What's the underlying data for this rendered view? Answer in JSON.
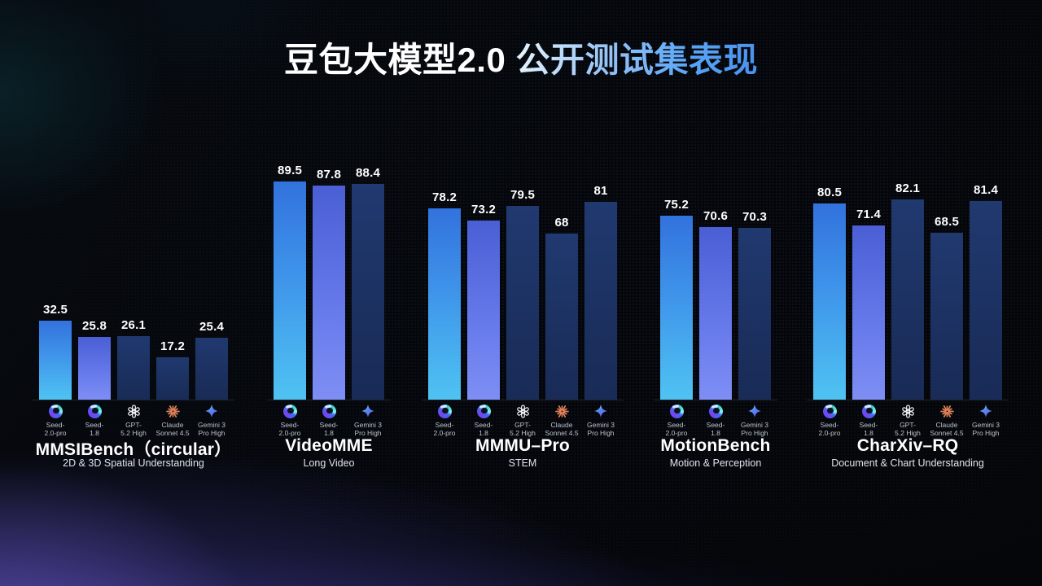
{
  "title": {
    "part1": "豆包大模型2.0",
    "part2": "公开测试集表现"
  },
  "colors": {
    "background": "#04060a",
    "bar_seed_pro_top": "#3272dd",
    "bar_seed_pro_bottom": "#4fc3f2",
    "bar_seed_18_top": "#4a5fd4",
    "bar_seed_18_bottom": "#7e8ef5",
    "bar_dark_top": "#20396f",
    "bar_dark_bottom": "#192b56",
    "title_accent": "#58a4f5",
    "claude_orange": "#e0805a"
  },
  "models": {
    "seed_pro": {
      "label_line1": "Seed-",
      "label_line2": "2.0-pro",
      "icon": "seed-icon",
      "bar_style": "bar-seed-pro"
    },
    "seed_18": {
      "label_line1": "Seed-",
      "label_line2": "1.8",
      "icon": "seed-icon",
      "bar_style": "bar-seed-18"
    },
    "gpt": {
      "label_line1": "GPT-",
      "label_line2": "5.2 High",
      "icon": "openai-icon",
      "bar_style": "bar-dark"
    },
    "claude": {
      "label_line1": "Claude",
      "label_line2": "Sonnet 4.5",
      "icon": "claude-icon",
      "bar_style": "bar-dark"
    },
    "gemini": {
      "label_line1": "Gemini 3",
      "label_line2": "Pro High",
      "icon": "gemini-icon",
      "bar_style": "bar-dark"
    }
  },
  "chart_data": {
    "type": "bar",
    "ylim": [
      0,
      100
    ],
    "legend_position": "below-bars",
    "grid": false,
    "groups": [
      {
        "name": "MMSIBench（circular）",
        "subtitle": "2D & 3D Spatial Understanding",
        "bars": [
          {
            "model": "seed_pro",
            "value": 32.5
          },
          {
            "model": "seed_18",
            "value": 25.8
          },
          {
            "model": "gpt",
            "value": 26.1
          },
          {
            "model": "claude",
            "value": 17.2
          },
          {
            "model": "gemini",
            "value": 25.4
          }
        ]
      },
      {
        "name": "VideoMME",
        "subtitle": "Long Video",
        "bars": [
          {
            "model": "seed_pro",
            "value": 89.5
          },
          {
            "model": "seed_18",
            "value": 87.8
          },
          {
            "model": "gemini",
            "value": 88.4
          }
        ]
      },
      {
        "name": "MMMU–Pro",
        "subtitle": "STEM",
        "bars": [
          {
            "model": "seed_pro",
            "value": 78.2
          },
          {
            "model": "seed_18",
            "value": 73.2
          },
          {
            "model": "gpt",
            "value": 79.5
          },
          {
            "model": "claude",
            "value": 68
          },
          {
            "model": "gemini",
            "value": 81
          }
        ]
      },
      {
        "name": "MotionBench",
        "subtitle": "Motion & Perception",
        "bars": [
          {
            "model": "seed_pro",
            "value": 75.2
          },
          {
            "model": "seed_18",
            "value": 70.6
          },
          {
            "model": "gemini",
            "value": 70.3
          }
        ]
      },
      {
        "name": "CharXiv–RQ",
        "subtitle": "Document & Chart Understanding",
        "bars": [
          {
            "model": "seed_pro",
            "value": 80.5
          },
          {
            "model": "seed_18",
            "value": 71.4
          },
          {
            "model": "gpt",
            "value": 82.1
          },
          {
            "model": "claude",
            "value": 68.5
          },
          {
            "model": "gemini",
            "value": 81.4
          }
        ]
      }
    ]
  }
}
